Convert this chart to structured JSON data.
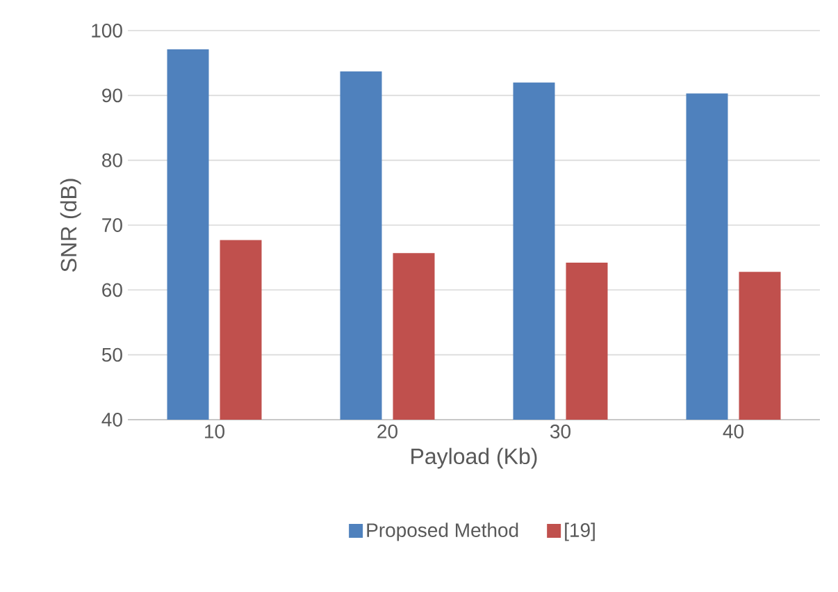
{
  "chart_data": {
    "type": "bar",
    "xlabel": "Payload (Kb)",
    "ylabel": "SNR (dB)",
    "categories": [
      "10",
      "20",
      "30",
      "40"
    ],
    "series": [
      {
        "name": "Proposed Method",
        "color": "#4f81bd",
        "values": [
          97.1,
          93.7,
          92.0,
          90.3
        ]
      },
      {
        "name": "[19]",
        "color": "#c0504d",
        "values": [
          67.7,
          65.7,
          64.2,
          62.8
        ]
      }
    ],
    "ylim": [
      40,
      100
    ],
    "yticks": [
      40,
      50,
      60,
      70,
      80,
      90,
      100
    ],
    "grid": "y",
    "legend": "bottom"
  }
}
